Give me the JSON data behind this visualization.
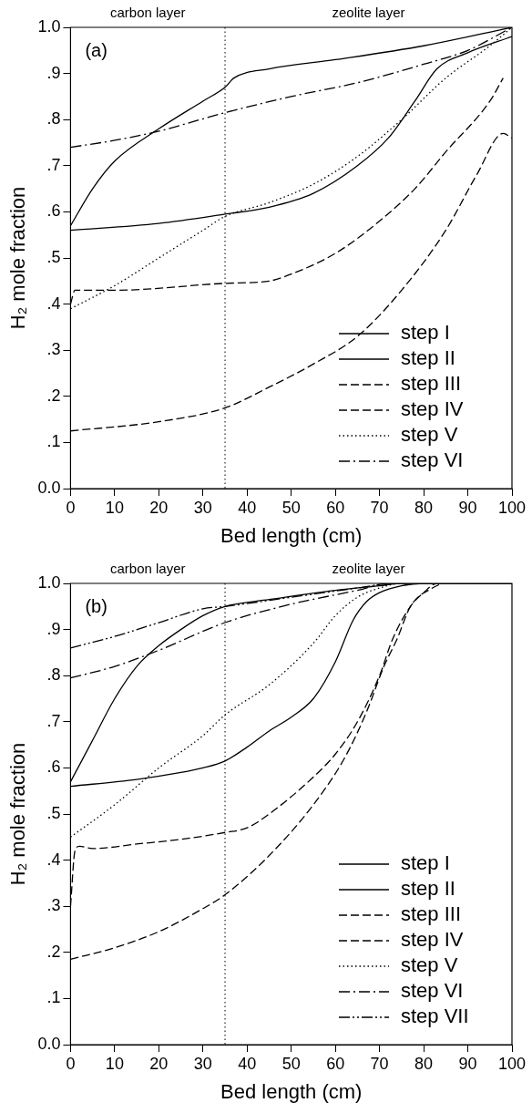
{
  "chart_data": [
    {
      "type": "line",
      "xlabel": "Bed length (cm)",
      "ylabel": "H₂ mole fraction",
      "annotations": [
        "(a)",
        "carbon layer",
        "zeolite layer"
      ],
      "xlim": [
        0,
        100
      ],
      "xticks": [
        0,
        10,
        20,
        30,
        40,
        50,
        60,
        70,
        80,
        90,
        100
      ],
      "ylim": [
        0,
        1
      ],
      "yticks": [
        {
          "value": 0,
          "label": "0.0"
        },
        {
          "value": 0.1,
          "label": ".1"
        },
        {
          "value": 0.2,
          "label": ".2"
        },
        {
          "value": 0.3,
          "label": ".3"
        },
        {
          "value": 0.4,
          "label": ".4"
        },
        {
          "value": 0.5,
          "label": ".5"
        },
        {
          "value": 0.6,
          "label": ".6"
        },
        {
          "value": 0.7,
          "label": ".7"
        },
        {
          "value": 0.8,
          "label": ".8"
        },
        {
          "value": 0.9,
          "label": ".9"
        },
        {
          "value": 1,
          "label": "1.0"
        }
      ],
      "grid": false,
      "legend": "bottom right",
      "marker": "none",
      "ref_lines": [
        {
          "axis": "x",
          "value": 35,
          "line_style": "dotted",
          "color": "#000000"
        }
      ],
      "series": [
        {
          "name": "step I",
          "color": "#000000",
          "line_style": "solid",
          "x": [
            0,
            5,
            10,
            20,
            30,
            35,
            37,
            45,
            60,
            80,
            100
          ],
          "values": [
            0.57,
            0.65,
            0.71,
            0.78,
            0.84,
            0.87,
            0.89,
            0.91,
            0.93,
            0.96,
            1.0
          ]
        },
        {
          "name": "step II",
          "color": "#000000",
          "line_style": "solid",
          "x": [
            0,
            20,
            35,
            45,
            55,
            65,
            72,
            78,
            83,
            90,
            100
          ],
          "values": [
            0.56,
            0.575,
            0.595,
            0.61,
            0.64,
            0.7,
            0.76,
            0.84,
            0.91,
            0.945,
            0.98
          ]
        },
        {
          "name": "step III",
          "color": "#000000",
          "line_style": "dashed",
          "x": [
            0,
            1,
            2,
            10,
            35,
            45,
            50,
            60,
            70,
            78,
            85,
            95,
            98
          ],
          "values": [
            0.4,
            0.43,
            0.43,
            0.43,
            0.445,
            0.45,
            0.465,
            0.51,
            0.58,
            0.65,
            0.73,
            0.84,
            0.89
          ]
        },
        {
          "name": "step IV",
          "color": "#000000",
          "line_style": "dashed",
          "x": [
            0,
            20,
            35,
            45,
            55,
            65,
            75,
            85,
            92,
            98,
            100
          ],
          "values": [
            0.125,
            0.145,
            0.175,
            0.22,
            0.27,
            0.33,
            0.43,
            0.56,
            0.68,
            0.77,
            0.76
          ]
        },
        {
          "name": "step V",
          "color": "#000000",
          "line_style": "dotted",
          "x": [
            0,
            10,
            20,
            30,
            35,
            45,
            55,
            65,
            75,
            85,
            95,
            100
          ],
          "values": [
            0.39,
            0.44,
            0.5,
            0.56,
            0.59,
            0.62,
            0.66,
            0.72,
            0.8,
            0.89,
            0.96,
            1.0
          ]
        },
        {
          "name": "step VI",
          "color": "#000000",
          "line_style": "dashdot",
          "x": [
            0,
            10,
            20,
            35,
            50,
            65,
            80,
            90,
            100
          ],
          "values": [
            0.74,
            0.755,
            0.775,
            0.815,
            0.85,
            0.88,
            0.92,
            0.95,
            1.0
          ]
        }
      ]
    },
    {
      "type": "line",
      "xlabel": "Bed length (cm)",
      "ylabel": "H₂ mole fraction",
      "annotations": [
        "(b)",
        "carbon layer",
        "zeolite layer"
      ],
      "xlim": [
        0,
        100
      ],
      "xticks": [
        0,
        10,
        20,
        30,
        40,
        50,
        60,
        70,
        80,
        90,
        100
      ],
      "ylim": [
        0,
        1
      ],
      "yticks": [
        {
          "value": 0,
          "label": "0.0"
        },
        {
          "value": 0.1,
          "label": ".1"
        },
        {
          "value": 0.2,
          "label": ".2"
        },
        {
          "value": 0.3,
          "label": ".3"
        },
        {
          "value": 0.4,
          "label": ".4"
        },
        {
          "value": 0.5,
          "label": ".5"
        },
        {
          "value": 0.6,
          "label": ".6"
        },
        {
          "value": 0.7,
          "label": ".7"
        },
        {
          "value": 0.8,
          "label": ".8"
        },
        {
          "value": 0.9,
          "label": ".9"
        },
        {
          "value": 1,
          "label": "1.0"
        }
      ],
      "grid": false,
      "legend": "bottom right",
      "marker": "none",
      "ref_lines": [
        {
          "axis": "x",
          "value": 35,
          "line_style": "dotted",
          "color": "#000000"
        }
      ],
      "series": [
        {
          "name": "step I",
          "color": "#000000",
          "line_style": "solid",
          "x": [
            0,
            5,
            10,
            15,
            20,
            25,
            30,
            35,
            45,
            60,
            70,
            75,
            100
          ],
          "values": [
            0.57,
            0.66,
            0.75,
            0.82,
            0.865,
            0.9,
            0.93,
            0.95,
            0.965,
            0.985,
            0.995,
            1.0,
            1.0
          ]
        },
        {
          "name": "step II",
          "color": "#000000",
          "line_style": "solid",
          "x": [
            0,
            15,
            25,
            30,
            35,
            40,
            45,
            50,
            55,
            60,
            64,
            67,
            70,
            75,
            80,
            100
          ],
          "values": [
            0.56,
            0.575,
            0.59,
            0.6,
            0.615,
            0.645,
            0.68,
            0.71,
            0.75,
            0.83,
            0.92,
            0.96,
            0.98,
            0.995,
            1.0,
            1.0
          ]
        },
        {
          "name": "step III",
          "color": "#000000",
          "line_style": "dashed",
          "x": [
            0,
            1,
            2,
            5,
            15,
            25,
            35,
            40,
            45,
            55,
            60,
            65,
            70,
            73,
            77,
            80,
            83,
            100
          ],
          "values": [
            0.3,
            0.42,
            0.43,
            0.425,
            0.435,
            0.445,
            0.46,
            0.47,
            0.5,
            0.58,
            0.63,
            0.7,
            0.8,
            0.88,
            0.95,
            0.98,
            1.0,
            1.0
          ]
        },
        {
          "name": "step IV",
          "color": "#000000",
          "line_style": "dashed",
          "x": [
            0,
            10,
            20,
            30,
            35,
            45,
            55,
            62,
            67,
            71,
            74,
            77,
            82,
            85,
            100
          ],
          "values": [
            0.185,
            0.21,
            0.245,
            0.295,
            0.325,
            0.41,
            0.52,
            0.62,
            0.72,
            0.82,
            0.88,
            0.95,
            0.99,
            1.0,
            1.0
          ]
        },
        {
          "name": "step V",
          "color": "#000000",
          "line_style": "dotted",
          "x": [
            0,
            10,
            20,
            30,
            35,
            45,
            55,
            60,
            65,
            70,
            75,
            100
          ],
          "values": [
            0.45,
            0.52,
            0.6,
            0.67,
            0.715,
            0.78,
            0.87,
            0.93,
            0.97,
            0.99,
            1.0,
            1.0
          ]
        },
        {
          "name": "step VI",
          "color": "#000000",
          "line_style": "dashdot",
          "x": [
            0,
            10,
            20,
            35,
            50,
            65,
            72,
            100
          ],
          "values": [
            0.795,
            0.82,
            0.855,
            0.915,
            0.955,
            0.985,
            1.0,
            1.0
          ]
        },
        {
          "name": "step VII",
          "color": "#000000",
          "line_style": "dashdotdot",
          "x": [
            0,
            10,
            20,
            30,
            35,
            50,
            65,
            73,
            100
          ],
          "values": [
            0.86,
            0.885,
            0.915,
            0.945,
            0.95,
            0.97,
            0.99,
            1.0,
            1.0
          ]
        }
      ]
    }
  ]
}
